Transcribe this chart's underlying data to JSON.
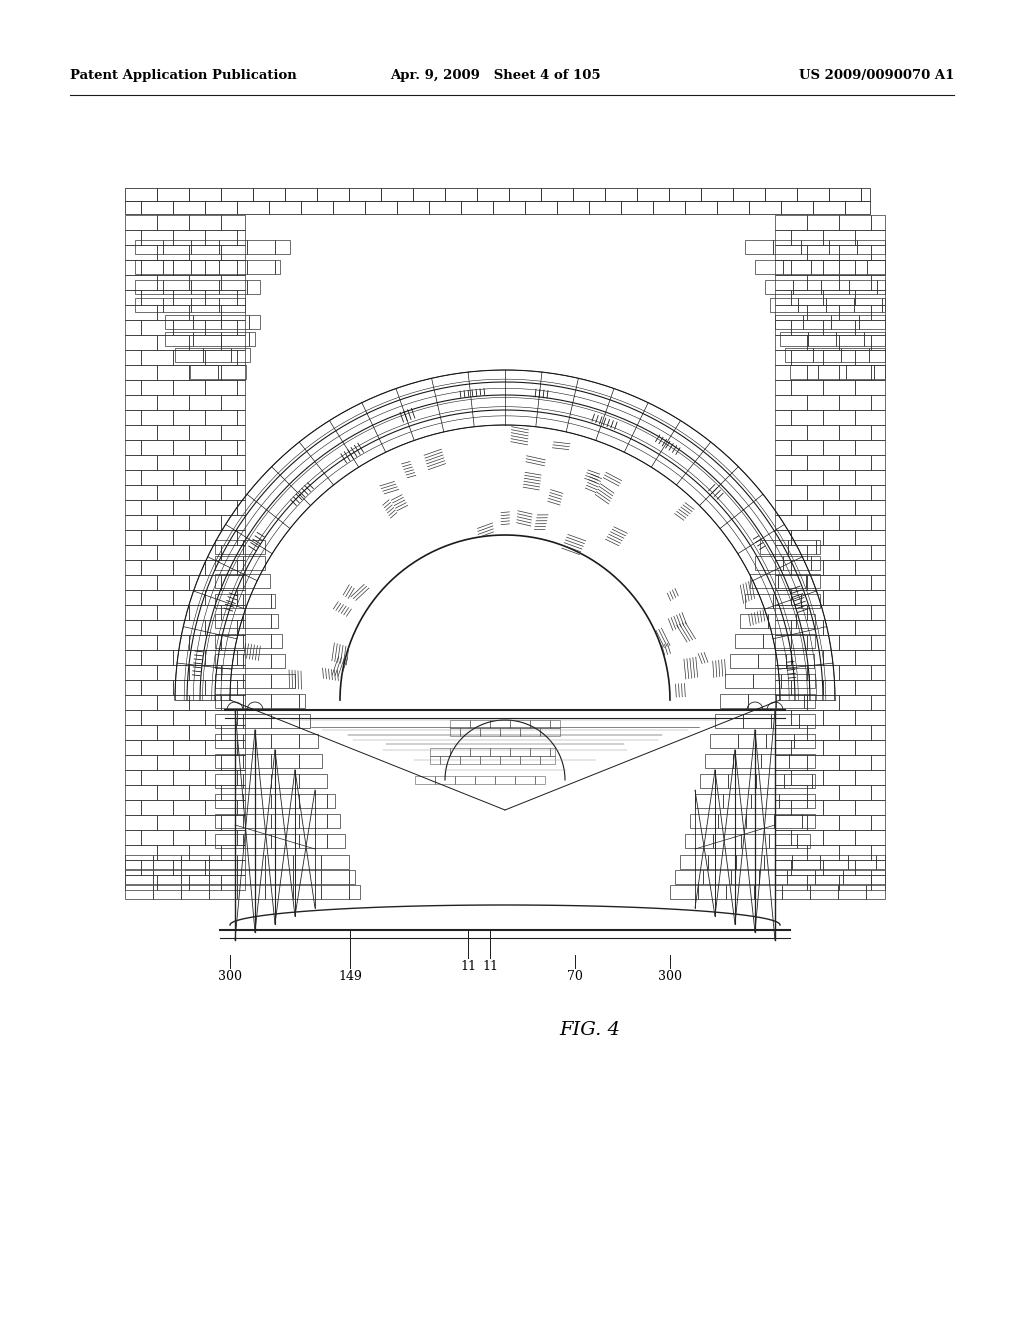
{
  "bg_color": "#ffffff",
  "header_left": "Patent Application Publication",
  "header_center": "Apr. 9, 2009   Sheet 4 of 105",
  "header_right": "US 2009/0090070 A1",
  "figure_label": "FIG. 4",
  "line_color": "#1a1a1a",
  "brick_color": "#2a2a2a",
  "light_gray": "#cccccc"
}
